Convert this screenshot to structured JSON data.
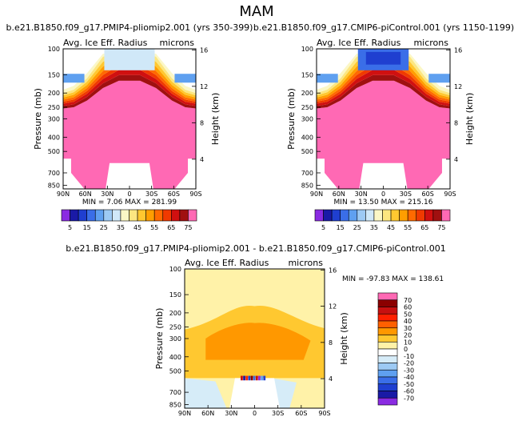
{
  "figure": {
    "title": "MAM"
  },
  "colors": {
    "pink": "#ff69b4",
    "plot_bg": "#ffffff",
    "frame": "#000000"
  },
  "chart_data": [
    {
      "type": "heatmap",
      "title": "b.e21.B1850.f09_g17.PMIP4-pliomip2.001 (yrs 350-399)",
      "left_label": "Avg. Ice Eff. Radius",
      "units": "microns",
      "xlabel": "",
      "ylabel": "Pressure (mb)",
      "ylabel_right": "Height (km)",
      "x_ticks": [
        "90N",
        "60N",
        "30N",
        "0",
        "30S",
        "60S",
        "90S"
      ],
      "y_ticks": [
        100,
        150,
        200,
        250,
        300,
        400,
        500,
        700,
        850
      ],
      "y_ticks_right": [
        16,
        12,
        8,
        4
      ],
      "ylim": [
        100,
        900
      ],
      "stats": "MIN =    7.06   MAX = 281.99",
      "colorbar_levels": [
        "5",
        "15",
        "25",
        "35",
        "45",
        "55",
        "65",
        "75"
      ],
      "colorbar_colors": [
        "#8a2be2",
        "#1a1aa6",
        "#1f3fd0",
        "#3a6ee8",
        "#5fa0f0",
        "#9dcaf4",
        "#d0e8f8",
        "#fbf7c6",
        "#fce680",
        "#ffc830",
        "#ff9e00",
        "#ff6a00",
        "#f03a00",
        "#d01010",
        "#a01010",
        "#ff69b4"
      ]
    },
    {
      "type": "heatmap",
      "title": "b.e21.B1850.f09_g17.CMIP6-piControl.001 (yrs 1150-1199)",
      "left_label": "Avg. Ice Eff. Radius",
      "units": "microns",
      "xlabel": "",
      "ylabel": "Pressure (mb)",
      "ylabel_right": "Height (km)",
      "x_ticks": [
        "90N",
        "60N",
        "30N",
        "0",
        "30S",
        "60S",
        "90S"
      ],
      "y_ticks": [
        100,
        150,
        200,
        250,
        300,
        400,
        500,
        700,
        850
      ],
      "y_ticks_right": [
        16,
        12,
        8,
        4
      ],
      "ylim": [
        100,
        900
      ],
      "stats": "MIN =   13.50   MAX = 215.16",
      "colorbar_levels": [
        "5",
        "15",
        "25",
        "35",
        "45",
        "55",
        "65",
        "75"
      ],
      "colorbar_colors": [
        "#8a2be2",
        "#1a1aa6",
        "#1f3fd0",
        "#3a6ee8",
        "#5fa0f0",
        "#9dcaf4",
        "#d0e8f8",
        "#fbf7c6",
        "#fce680",
        "#ffc830",
        "#ff9e00",
        "#ff6a00",
        "#f03a00",
        "#d01010",
        "#a01010",
        "#ff69b4"
      ]
    },
    {
      "type": "heatmap",
      "title": "b.e21.B1850.f09_g17.PMIP4-pliomip2.001 - b.e21.B1850.f09_g17.CMIP6-piControl.001",
      "left_label": "Avg. Ice Eff. Radius",
      "units": "microns",
      "xlabel": "",
      "ylabel": "Pressure (mb)",
      "ylabel_right": "Height (km)",
      "x_ticks": [
        "90N",
        "60N",
        "30N",
        "0",
        "30S",
        "60S",
        "90S"
      ],
      "y_ticks": [
        100,
        150,
        200,
        250,
        300,
        400,
        500,
        700,
        850
      ],
      "y_ticks_right": [
        16,
        12,
        8,
        4
      ],
      "ylim": [
        100,
        900
      ],
      "stats": "MIN = -97.83   MAX = 138.61",
      "colorbar_levels": [
        "70",
        "60",
        "50",
        "40",
        "30",
        "20",
        "10",
        "0",
        "-10",
        "-20",
        "-30",
        "-40",
        "-50",
        "-60",
        "-70"
      ],
      "colorbar_colors": [
        "#ff69b4",
        "#8b0000",
        "#c81010",
        "#ff2000",
        "#ff6000",
        "#ff9800",
        "#ffc830",
        "#fff2a8",
        "#ffffff",
        "#d6ecf8",
        "#9dcaf4",
        "#5fa0f0",
        "#3a6ee8",
        "#1f3fd0",
        "#1a1aa6",
        "#8a2be2"
      ]
    }
  ]
}
